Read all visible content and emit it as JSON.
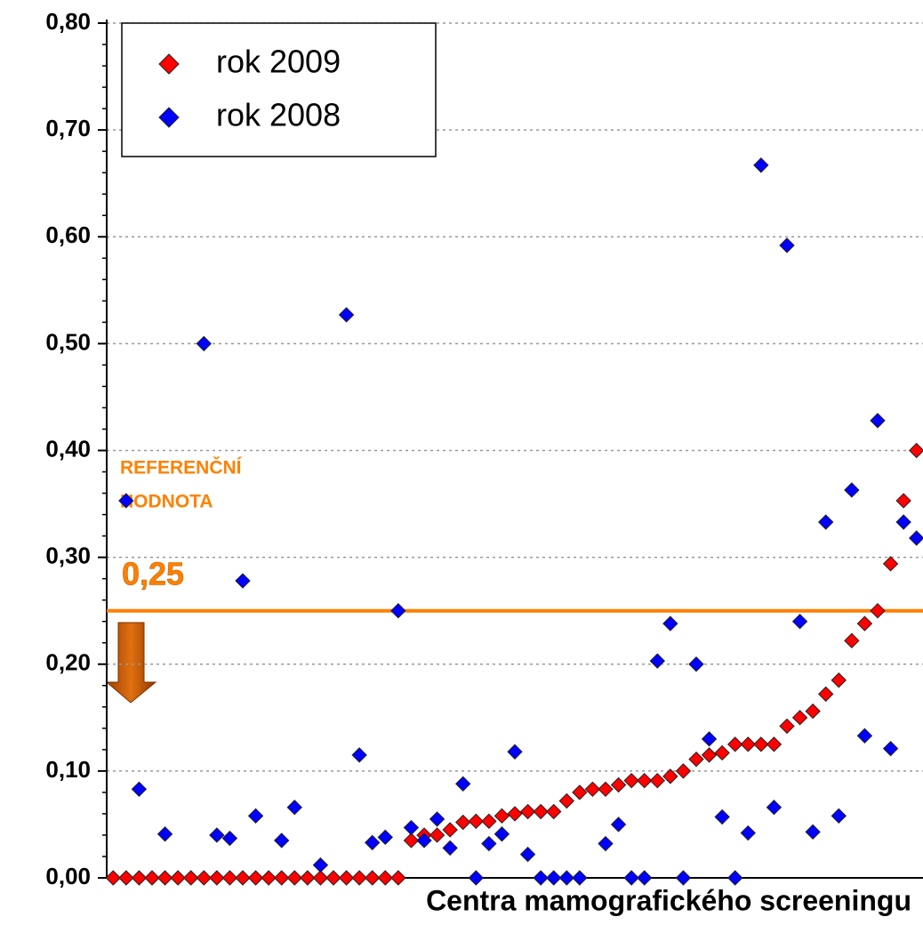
{
  "chart_data": {
    "type": "scatter",
    "xlabel": "Centra mamografického screeningu",
    "categories": [
      null,
      null,
      null,
      null,
      null,
      null,
      null,
      null,
      null,
      null,
      null,
      null,
      null,
      null,
      null,
      null,
      null,
      null,
      null,
      null,
      null,
      null,
      null,
      null,
      null,
      null,
      null,
      null,
      null,
      null,
      null,
      null,
      null,
      null,
      null,
      null,
      null,
      null,
      null,
      null,
      null,
      null,
      null,
      null,
      null,
      null,
      null,
      null,
      null,
      null,
      null,
      null,
      null,
      null,
      null,
      null,
      null,
      null,
      null,
      null,
      null,
      null,
      null
    ],
    "series": [
      {
        "name": "rok 2009",
        "color": "#ff0000",
        "values": [
          0,
          0,
          0,
          0,
          0,
          0,
          0,
          0,
          0,
          0,
          0,
          0,
          0,
          0,
          0,
          0,
          0,
          0,
          0,
          0,
          0,
          0,
          0,
          0.035,
          0.04,
          0.04,
          0.045,
          0.052,
          0.053,
          0.053,
          0.058,
          0.06,
          0.062,
          0.062,
          0.062,
          0.072,
          0.08,
          0.083,
          0.083,
          0.087,
          0.091,
          0.091,
          0.091,
          0.095,
          0.1,
          0.111,
          0.115,
          0.117,
          0.125,
          0.125,
          0.125,
          0.125,
          0.142,
          0.15,
          0.156,
          0.172,
          0.185,
          0.222,
          0.238,
          0.25,
          0.294,
          0.353,
          0.4
        ]
      },
      {
        "name": "rok 2008",
        "color": "#0000ff",
        "values": [
          null,
          0.353,
          0.083,
          null,
          0.041,
          null,
          null,
          0.5,
          0.04,
          0.037,
          0.278,
          0.058,
          null,
          0.035,
          0.066,
          null,
          0.012,
          null,
          0.527,
          0.115,
          0.033,
          0.038,
          0.25,
          0.047,
          0.035,
          0.055,
          0.028,
          0.088,
          0,
          0.032,
          0.041,
          0.118,
          0.022,
          0,
          0,
          0,
          0,
          null,
          0.032,
          0.05,
          0,
          0,
          0.203,
          0.238,
          0,
          0.2,
          0.13,
          0.057,
          0,
          0.042,
          0.667,
          0.066,
          0.592,
          0.24,
          0.043,
          0.333,
          0.058,
          0.363,
          0.133,
          0.428,
          0.121,
          0.333,
          0.318
        ]
      }
    ],
    "ylim": [
      0,
      0.8
    ],
    "yticks": [
      {
        "value": 0,
        "label": "0,00"
      },
      {
        "value": 0.1,
        "label": "0,10"
      },
      {
        "value": 0.2,
        "label": "0,20"
      },
      {
        "value": 0.3,
        "label": "0,30"
      },
      {
        "value": 0.4,
        "label": "0,40"
      },
      {
        "value": 0.5,
        "label": "0,50"
      },
      {
        "value": 0.6,
        "label": "0,60"
      },
      {
        "value": 0.7,
        "label": "0,70"
      },
      {
        "value": 0.8,
        "label": "0,80"
      }
    ],
    "grid": true,
    "legend": "upper left",
    "reference_line": {
      "value": 0.25,
      "label": "0,25",
      "color": "#ff8000"
    },
    "annotation": [
      "REFERENČNÍ",
      "HODNOTA"
    ]
  }
}
